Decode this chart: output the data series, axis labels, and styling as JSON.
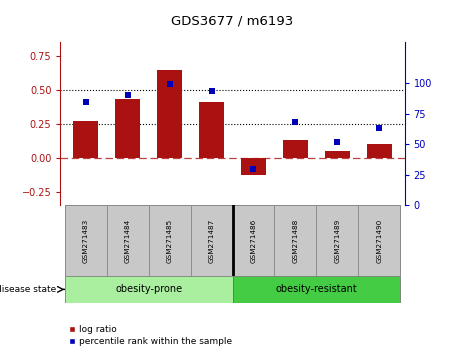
{
  "title": "GDS3677 / m6193",
  "samples": [
    "GSM271483",
    "GSM271484",
    "GSM271485",
    "GSM271487",
    "GSM271486",
    "GSM271488",
    "GSM271489",
    "GSM271490"
  ],
  "log_ratio": [
    0.27,
    0.43,
    0.65,
    0.41,
    -0.13,
    0.13,
    0.05,
    0.1
  ],
  "percentile_rank": [
    85,
    90,
    99,
    94,
    30,
    68,
    52,
    63
  ],
  "group1_label": "obesity-prone",
  "group2_label": "obesity-resistant",
  "group1_count": 4,
  "group2_count": 4,
  "bar_color": "#AA1111",
  "dot_color": "#0000BB",
  "left_ylim": [
    -0.35,
    0.85
  ],
  "right_ylim": [
    0,
    133.33
  ],
  "left_yticks": [
    -0.25,
    0,
    0.25,
    0.5,
    0.75
  ],
  "right_yticks": [
    0,
    25,
    50,
    75,
    100
  ],
  "hline_vals": [
    0.25,
    0.5
  ],
  "group1_color": "#AAEEA0",
  "group2_color": "#44CC44",
  "sample_box_color": "#C8C8C8",
  "legend_log_ratio": "log ratio",
  "legend_percentile": "percentile rank within the sample",
  "disease_state_label": "disease state"
}
